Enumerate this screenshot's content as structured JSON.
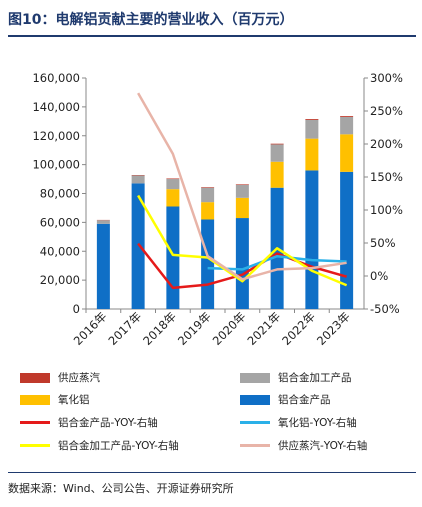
{
  "title": "图10：电解铝贡献主要的营业收入（百万元）",
  "source": "数据来源：Wind、公司公告、开源证券研究所",
  "chart_data": {
    "type": "bar",
    "stacked": true,
    "categories": [
      "2016年",
      "2017年",
      "2018年",
      "2019年",
      "2020年",
      "2021年",
      "2022年",
      "2023年"
    ],
    "ylim": [
      0,
      160000
    ],
    "y_ticks": [
      "0",
      "20,000",
      "40,000",
      "60,000",
      "80,000",
      "100,000",
      "120,000",
      "140,000",
      "160,000"
    ],
    "y2lim": [
      -50,
      300
    ],
    "y2_ticks": [
      "-50%",
      "0%",
      "50%",
      "100%",
      "150%",
      "200%",
      "250%",
      "300%"
    ],
    "bar_series": [
      {
        "name": "铝合金产品",
        "color": "#0f6fc6",
        "values": [
          59000,
          87000,
          71000,
          62000,
          63000,
          84000,
          96000,
          95000
        ]
      },
      {
        "name": "氧化铝",
        "color": "#ffc000",
        "values": [
          0,
          0,
          12000,
          12000,
          14000,
          18000,
          22000,
          26000
        ]
      },
      {
        "name": "铝合金加工产品",
        "color": "#a5a5a5",
        "values": [
          2500,
          5500,
          7000,
          10000,
          9000,
          12000,
          13000,
          12000
        ]
      },
      {
        "name": "供应蒸汽",
        "color": "#c0392b",
        "values": [
          200,
          300,
          400,
          400,
          400,
          500,
          600,
          600
        ]
      }
    ],
    "line_series": [
      {
        "name": "铝合金产品-YOY-右轴",
        "color": "#e51a1a",
        "x": [
          "2017年",
          "2018年",
          "2019年",
          "2020年",
          "2021年",
          "2022年",
          "2023年"
        ],
        "values": [
          49,
          -18,
          -13,
          2,
          34,
          14,
          -1
        ]
      },
      {
        "name": "氧化铝-YOY-右轴",
        "color": "#2ab0e8",
        "x": [
          "2019年",
          "2020年",
          "2021年",
          "2022年",
          "2023年"
        ],
        "values": [
          12,
          10,
          30,
          24,
          22
        ]
      },
      {
        "name": "铝合金加工产品-YOY-右轴",
        "color": "#ffff00",
        "x": [
          "2017年",
          "2018年",
          "2019年",
          "2020年",
          "2021年",
          "2022年",
          "2023年"
        ],
        "values": [
          122,
          32,
          28,
          -8,
          42,
          8,
          -14
        ]
      },
      {
        "name": "供应蒸汽-YOY-右轴",
        "color": "#e8b4a8",
        "x": [
          "2017年",
          "2018年",
          "2019年",
          "2020年",
          "2021年",
          "2022年",
          "2023年"
        ],
        "values": [
          277,
          185,
          30,
          -5,
          10,
          12,
          20
        ]
      }
    ],
    "legend_position": "bottom",
    "grid": false
  }
}
